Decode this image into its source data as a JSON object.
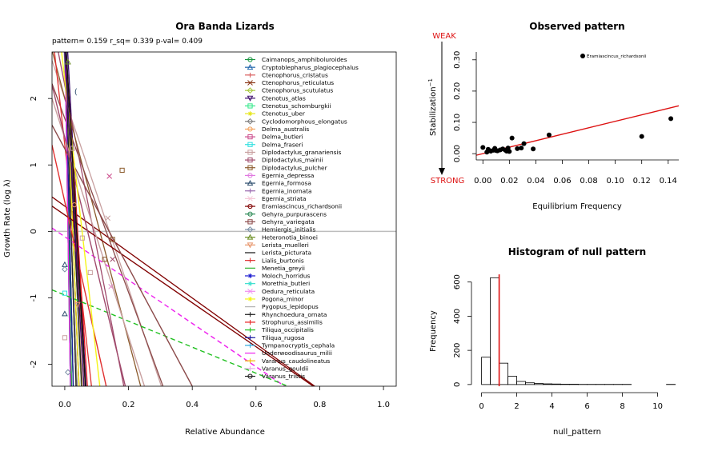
{
  "chart_data": [
    {
      "type": "line",
      "title": "Ora Banda Lizards",
      "subtitle": "pattern= 0.159 r_sq= 0.339 p-val= 0.409",
      "xlabel": "Relative Abundance",
      "ylabel": "Growth Rate (log  λ)",
      "xlim": [
        -0.04,
        1.04
      ],
      "ylim": [
        -2.33,
        2.7
      ],
      "xticks": [
        "0.0",
        "0.2",
        "0.4",
        "0.6",
        "0.8",
        "1.0"
      ],
      "yticks": [
        "-2",
        "-1",
        "0",
        "1",
        "2"
      ],
      "hline": 0,
      "legend_position": "top-right",
      "series": [
        {
          "name": "Caimanops_amphiboluroides",
          "color": "#1a9641",
          "marker": "o",
          "intercept": 3.0,
          "xint": 0.012
        },
        {
          "name": "Cryptoblepharus_plagiocephalus",
          "color": "#2166ac",
          "marker": "^",
          "intercept": 3.2,
          "xint": 0.03
        },
        {
          "name": "Ctenophorus_cristatus",
          "color": "#d95f5f",
          "marker": "+",
          "intercept": 2.9,
          "xint": 0.025
        },
        {
          "name": "Ctenophorus_reticulatus",
          "color": "#8c3a1a",
          "marker": "x",
          "intercept": 2.8,
          "xint": 0.035
        },
        {
          "name": "Ctenophorus_scutulatus",
          "color": "#a6c83a",
          "marker": "d",
          "intercept": 3.0,
          "xint": 0.02
        },
        {
          "name": "Ctenotus_atlas",
          "color": "#3b0a6b",
          "marker": "v",
          "intercept": 3.5,
          "xint": 0.04
        },
        {
          "name": "Ctenotus_schomburgkii",
          "color": "#33e88a",
          "marker": "s",
          "intercept": 3.0,
          "xint": 0.015
        },
        {
          "name": "Ctenotus_uber",
          "color": "#e6e61a",
          "marker": "*",
          "intercept": 3.1,
          "xint": 0.03
        },
        {
          "name": "Cyclodomorphous_elongatus",
          "color": "#7f7f7f",
          "marker": "d",
          "intercept": 2.5,
          "xint": 0.02
        },
        {
          "name": "Delma_australis",
          "color": "#f4a460",
          "marker": "o",
          "intercept": 2.8,
          "xint": 0.03
        },
        {
          "name": "Delma_butleri",
          "color": "#cc4c8c",
          "marker": "s",
          "intercept": 3.0,
          "xint": 0.025
        },
        {
          "name": "Delma_fraseri",
          "color": "#2ee0e0",
          "marker": "s",
          "intercept": 3.0,
          "xint": 0.01
        },
        {
          "name": "Diplodactylus_granariensis",
          "color": "#c8a0a0",
          "marker": "s",
          "intercept": 2.0,
          "xint": 0.14
        },
        {
          "name": "Diplodactylus_mainii",
          "color": "#a04a6c",
          "marker": "s",
          "intercept": 2.2,
          "xint": 0.09
        },
        {
          "name": "Diplodactylus_pulcher",
          "color": "#8b5a2b",
          "marker": "s",
          "intercept": 2.0,
          "xint": 0.11
        },
        {
          "name": "Egernia_depressa",
          "color": "#e07ae0",
          "marker": "o",
          "intercept": 3.0,
          "xint": 0.02
        },
        {
          "name": "Egernia_formosa",
          "color": "#2f4f6f",
          "marker": "^",
          "intercept": 3.0,
          "xint": 0.015
        },
        {
          "name": "Egernia_inornata",
          "color": "#9b6bb0",
          "marker": "+",
          "intercept": 3.0,
          "xint": 0.02
        },
        {
          "name": "Egernia_striata",
          "color": "#f5c8d8",
          "marker": "x",
          "intercept": 3.0,
          "xint": 0.02
        },
        {
          "name": "Eramiascincus_richardsonii",
          "color": "#800000",
          "marker": "o",
          "intercept": 0.38,
          "xint": 0.11
        },
        {
          "name": "Gehyra_purpurascens",
          "color": "#2e8b57",
          "marker": "o",
          "intercept": 3.0,
          "xint": 0.02
        },
        {
          "name": "Gehyra_variegata",
          "color": "#8b4a4a",
          "marker": "s",
          "intercept": 1.7,
          "xint": 0.13
        },
        {
          "name": "Hemiergis_initialis",
          "color": "#7a8fa6",
          "marker": "d",
          "intercept": 3.0,
          "xint": 0.01
        },
        {
          "name": "Heteronotia_binoei",
          "color": "#6b8e23",
          "marker": "^",
          "intercept": 3.0,
          "xint": 0.02
        },
        {
          "name": "Lerista_muelleri",
          "color": "#e8956b",
          "marker": "v",
          "intercept": 3.0,
          "xint": 0.02
        },
        {
          "name": "Lerista_picturata",
          "color": "#111111",
          "marker": "",
          "intercept": 3.0,
          "xint": 0.025
        },
        {
          "name": "Lialis_burtonis",
          "color": "#e03030",
          "marker": "+",
          "intercept": 1.3,
          "xint": 0.03
        },
        {
          "name": "Menetia_greyii",
          "color": "#32b432",
          "marker": "",
          "intercept": 3.0,
          "xint": 0.015
        },
        {
          "name": "Moloch_horridus",
          "color": "#1a1ad0",
          "marker": "*",
          "intercept": 3.0,
          "xint": 0.02
        },
        {
          "name": "Morethia_butleri",
          "color": "#40e0d0",
          "marker": "*",
          "intercept": 3.0,
          "xint": 0.01
        },
        {
          "name": "Oedura_reticulata",
          "color": "#f08cf0",
          "marker": "x",
          "intercept": 3.0,
          "xint": 0.02
        },
        {
          "name": "Pogona_minor",
          "color": "#f5f51a",
          "marker": "*",
          "intercept": 3.0,
          "xint": 0.025
        },
        {
          "name": "Pygopus_lepidopus",
          "color": "#b3b3b3",
          "marker": "",
          "intercept": 3.0,
          "xint": 0.02
        },
        {
          "name": "Rhynchoedura_ornata",
          "color": "#222222",
          "marker": "+",
          "intercept": 3.0,
          "xint": 0.03
        },
        {
          "name": "Strophurus_assimilis",
          "color": "#e82020",
          "marker": "+",
          "intercept": 3.0,
          "xint": 0.04
        },
        {
          "name": "Tiliqua_occipitalis",
          "color": "#20c020",
          "marker": "+",
          "intercept": 3.0,
          "xint": 0.01
        },
        {
          "name": "Tiliqua_rugosa",
          "color": "#1a1aa0",
          "marker": "+",
          "intercept": 3.0,
          "xint": 0.015
        },
        {
          "name": "Tympanocryptis_cephala",
          "color": "#33aadd",
          "marker": "+",
          "intercept": 3.0,
          "xint": 0.02
        },
        {
          "name": "Underwoodisaurus_milii",
          "color": "#ee22ee",
          "marker": "",
          "intercept": 3.0,
          "xint": 0.01
        },
        {
          "name": "Varanus_caudolineatus",
          "color": "#f5b400",
          "marker": "+",
          "intercept": 3.0,
          "xint": 0.02
        },
        {
          "name": "Varanus_gouldii",
          "color": "#e8b0e8",
          "marker": "+",
          "intercept": 3.0,
          "xint": 0.02
        },
        {
          "name": "Varanus_tristis",
          "color": "#222222",
          "marker": "o",
          "intercept": 3.0,
          "xint": 0.02
        }
      ],
      "extra_lines": [
        {
          "color": "#ee22ee",
          "dashed": true,
          "x1": -0.04,
          "y1": 0.05,
          "x2": 0.69,
          "y2": -2.33
        },
        {
          "color": "#20c020",
          "dashed": true,
          "x1": -0.04,
          "y1": -0.88,
          "x2": 0.7,
          "y2": -2.33
        },
        {
          "color": "#800000",
          "dashed": false,
          "x1": -0.04,
          "y1": 0.38,
          "x2": 0.78,
          "y2": -2.33
        },
        {
          "color": "#8b4a4a",
          "dashed": false,
          "x1": -0.04,
          "y1": 1.6,
          "x2": 0.4,
          "y2": -2.33
        },
        {
          "color": "#c8a0a0",
          "dashed": false,
          "x1": -0.04,
          "y1": 2.0,
          "x2": 0.25,
          "y2": -2.33
        },
        {
          "color": "#a04a6c",
          "dashed": false,
          "x1": -0.04,
          "y1": 2.2,
          "x2": 0.19,
          "y2": -2.33
        },
        {
          "color": "#e03030",
          "dashed": false,
          "x1": -0.04,
          "y1": 1.3,
          "x2": 0.13,
          "y2": -2.33
        },
        {
          "color": "#f5f51a",
          "dashed": false,
          "x1": -0.01,
          "y1": 2.7,
          "x2": 0.11,
          "y2": -2.33
        },
        {
          "color": "#3b0a6b",
          "dashed": false,
          "x1": 0.0,
          "y1": 2.7,
          "x2": 0.06,
          "y2": -2.33
        },
        {
          "color": "#111111",
          "dashed": false,
          "x1": 0.005,
          "y1": 2.7,
          "x2": 0.065,
          "y2": -2.33
        }
      ],
      "points": [
        {
          "x": 0.18,
          "y": 0.92,
          "color": "#8b5a2b",
          "marker": "s"
        },
        {
          "x": 0.14,
          "y": 0.83,
          "color": "#cc4c8c",
          "marker": "x"
        },
        {
          "x": 0.135,
          "y": 0.2,
          "color": "#c8a0a0",
          "marker": "x"
        },
        {
          "x": 0.15,
          "y": -0.12,
          "color": "#8b5a2b",
          "marker": "s"
        },
        {
          "x": 0.125,
          "y": -0.42,
          "color": "#8b5a2b",
          "marker": "s"
        },
        {
          "x": 0.15,
          "y": -0.42,
          "color": "#a04a6c",
          "marker": "x"
        },
        {
          "x": 0.145,
          "y": -0.83,
          "color": "#e08cc8",
          "marker": "x"
        },
        {
          "x": 0.08,
          "y": -0.62,
          "color": "#c8a0a0",
          "marker": "s"
        },
        {
          "x": 0.055,
          "y": -0.1,
          "color": "#c8a0a0",
          "marker": "s"
        },
        {
          "x": 0.0,
          "y": -0.5,
          "color": "#2f4f6f",
          "marker": "^"
        },
        {
          "x": 0.0,
          "y": -0.57,
          "color": "#7a8fa6",
          "marker": "d"
        },
        {
          "x": 0.0,
          "y": -0.93,
          "color": "#2ee0e0",
          "marker": "s"
        },
        {
          "x": 0.0,
          "y": -1.24,
          "color": "#2f4f6f",
          "marker": "^"
        },
        {
          "x": 0.0,
          "y": -1.6,
          "color": "#c8a0a0",
          "marker": "s"
        },
        {
          "x": 0.01,
          "y": -2.12,
          "color": "#7a8fa6",
          "marker": "d"
        },
        {
          "x": 0.04,
          "y": -1.1,
          "color": "#e8956b",
          "marker": "v"
        },
        {
          "x": 0.03,
          "y": 2.1,
          "color": "#2f4f6f",
          "marker": "("
        },
        {
          "x": 0.01,
          "y": 2.55,
          "color": "#6b8e23",
          "marker": "^"
        },
        {
          "x": 0.025,
          "y": 1.25,
          "color": "#c8a0a0",
          "marker": "s"
        },
        {
          "x": 0.03,
          "y": 0.4,
          "color": "#f4a460",
          "marker": "o"
        }
      ]
    },
    {
      "type": "scatter",
      "title": "Observed pattern",
      "xlabel": "Equilibrium Frequency",
      "ylabel": "Stabilization",
      "ylabel_sup": "−1",
      "xlim": [
        -0.005,
        0.148
      ],
      "ylim": [
        -0.02,
        0.325
      ],
      "xticks": [
        "0.00",
        "0.02",
        "0.04",
        "0.06",
        "0.08",
        "0.10",
        "0.12",
        "0.14"
      ],
      "yticks": [
        "0.00",
        "0.10",
        "0.20",
        "0.30"
      ],
      "weak_label": "WEAK",
      "strong_label": "STRONG",
      "legend_label": "Eramiascincus_richardsonii",
      "regression": {
        "x1": -0.005,
        "y1": -0.005,
        "x2": 0.148,
        "y2": 0.153,
        "color": "#dd1111"
      },
      "x": [
        0.0,
        0.003,
        0.005,
        0.004,
        0.006,
        0.008,
        0.009,
        0.01,
        0.011,
        0.013,
        0.015,
        0.017,
        0.018,
        0.019,
        0.02,
        0.022,
        0.026,
        0.029,
        0.031,
        0.038,
        0.05,
        0.12,
        0.142
      ],
      "y": [
        0.02,
        0.005,
        0.01,
        0.014,
        0.008,
        0.011,
        0.017,
        0.01,
        0.009,
        0.012,
        0.015,
        0.011,
        0.008,
        0.018,
        0.007,
        0.05,
        0.016,
        0.018,
        0.032,
        0.015,
        0.06,
        0.055,
        0.112
      ]
    },
    {
      "type": "bar",
      "title": "Histogram of null pattern",
      "xlabel": "null_pattern",
      "ylabel": "Frequency",
      "xlim": [
        -0.3,
        11.2
      ],
      "ylim": [
        -10,
        650
      ],
      "xticks": [
        "0",
        "2",
        "4",
        "6",
        "8",
        "10"
      ],
      "yticks": [
        "0",
        "200",
        "400",
        "600"
      ],
      "bin_width": 0.5,
      "bin_starts": [
        0,
        0.5,
        1.0,
        1.5,
        2.0,
        2.5,
        3.0,
        3.5,
        4.0,
        4.5,
        5.0,
        5.5,
        6.0,
        6.5,
        7.0,
        7.5,
        8.0,
        8.5,
        9.0,
        9.5,
        10.0,
        10.5
      ],
      "values": [
        160,
        625,
        125,
        48,
        18,
        10,
        6,
        4,
        3,
        2,
        2,
        1,
        1,
        1,
        1,
        1,
        1,
        0,
        0,
        0,
        0,
        1
      ],
      "vline": 1.0,
      "vline_color": "#dd1111"
    }
  ]
}
